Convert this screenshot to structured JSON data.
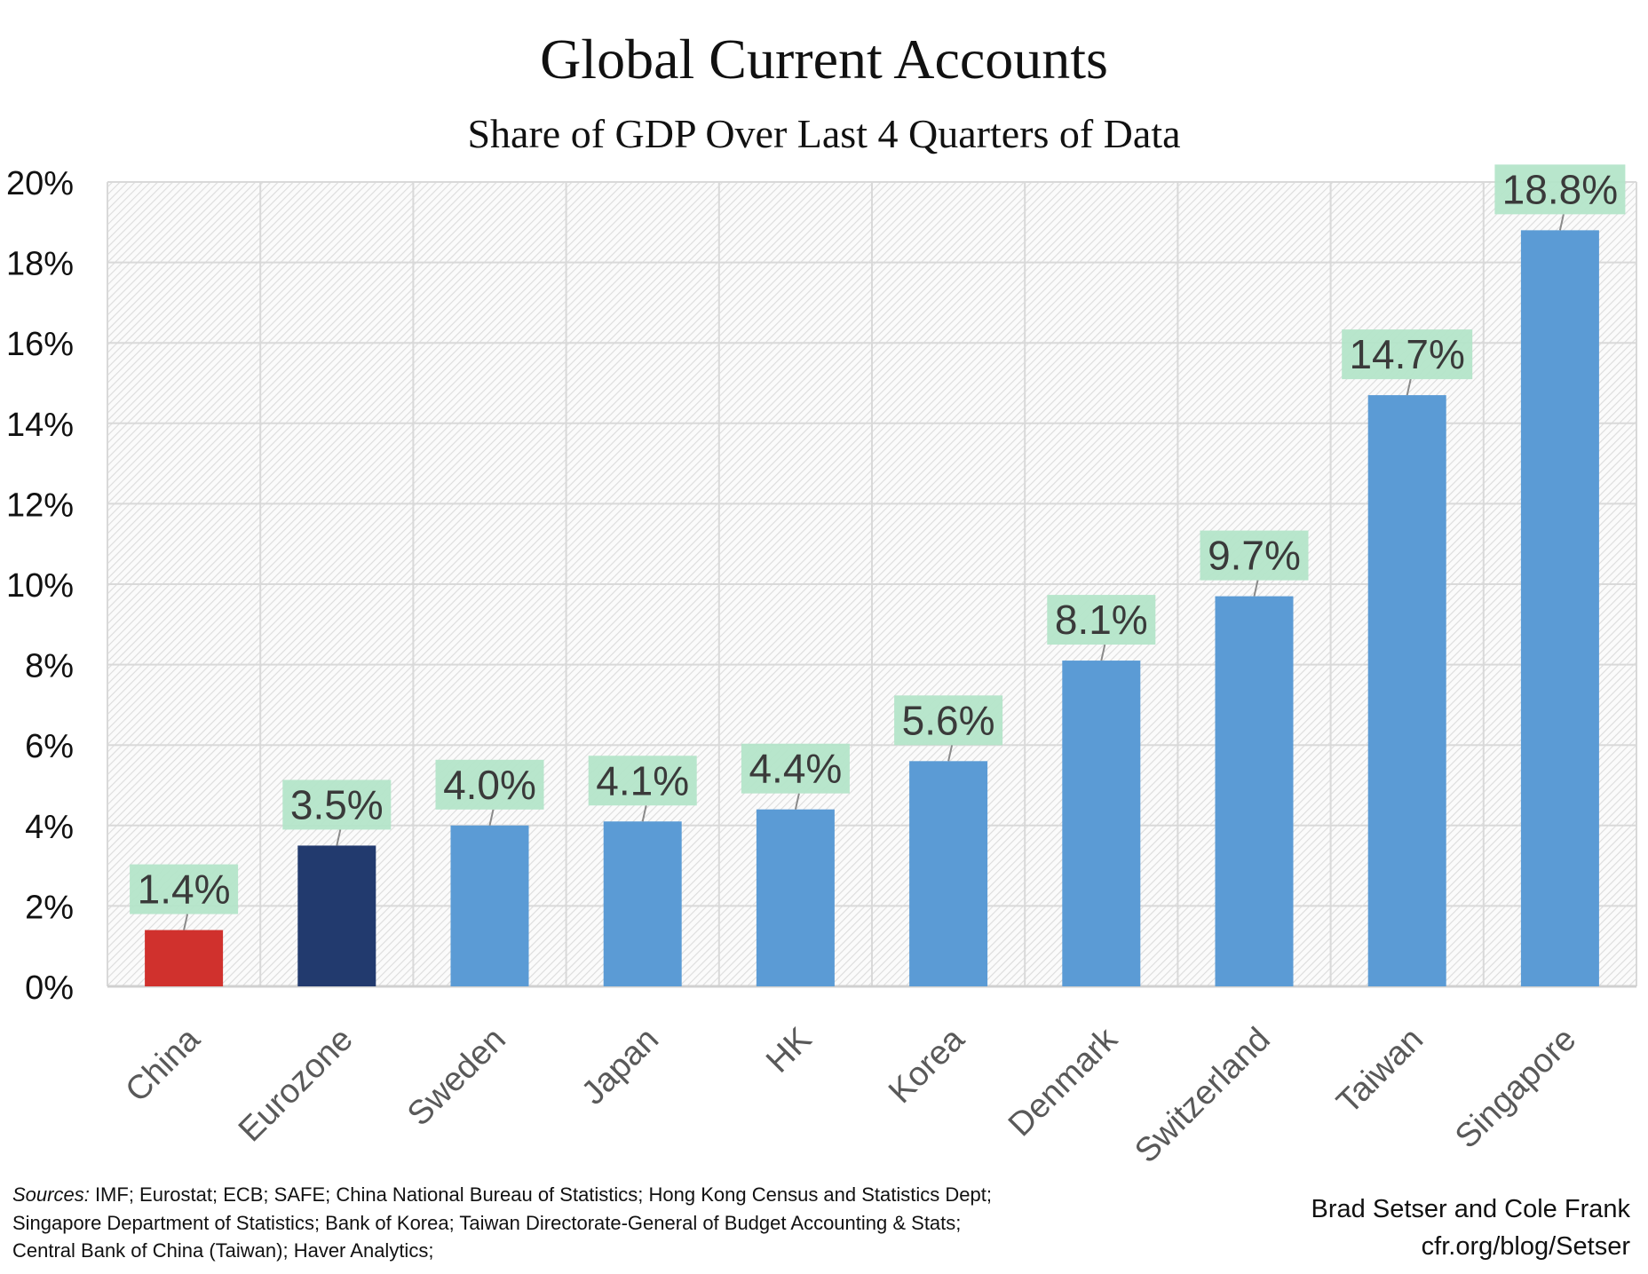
{
  "chart_data": {
    "type": "bar",
    "title": "Global Current Accounts",
    "subtitle": "Share of GDP Over Last 4 Quarters of Data",
    "categories": [
      "China",
      "Eurozone",
      "Sweden",
      "Japan",
      "HK",
      "Korea",
      "Denmark",
      "Switzerland",
      "Taiwan",
      "Singapore"
    ],
    "values": [
      1.4,
      3.5,
      4.0,
      4.1,
      4.4,
      5.6,
      8.1,
      9.7,
      14.7,
      18.8
    ],
    "data_labels": [
      "1.4%",
      "3.5%",
      "4.0%",
      "4.1%",
      "4.4%",
      "5.6%",
      "8.1%",
      "9.7%",
      "14.7%",
      "18.8%"
    ],
    "bar_colors": [
      "#d0312d",
      "#223a6e",
      "#5b9bd5",
      "#5b9bd5",
      "#5b9bd5",
      "#5b9bd5",
      "#5b9bd5",
      "#5b9bd5",
      "#5b9bd5",
      "#5b9bd5"
    ],
    "label_box_color": "#b4e5c9",
    "ylim": [
      0,
      20
    ],
    "yticks": [
      "0%",
      "2%",
      "4%",
      "6%",
      "8%",
      "10%",
      "12%",
      "14%",
      "16%",
      "18%",
      "20%"
    ],
    "grid": true,
    "legend": "none"
  },
  "footer": {
    "sources_label": "Sources:",
    "sources_line1": " IMF; Eurostat; ECB; SAFE; China National Bureau of Statistics; Hong Kong Census and Statistics Dept;",
    "sources_line2": "Singapore Department of Statistics; Bank of Korea; Taiwan Directorate-General of Budget Accounting & Stats;",
    "sources_line3": " Central Bank of China (Taiwan);  Haver Analytics;",
    "credit_line1": "Brad Setser and Cole Frank",
    "credit_line2": "cfr.org/blog/Setser"
  }
}
